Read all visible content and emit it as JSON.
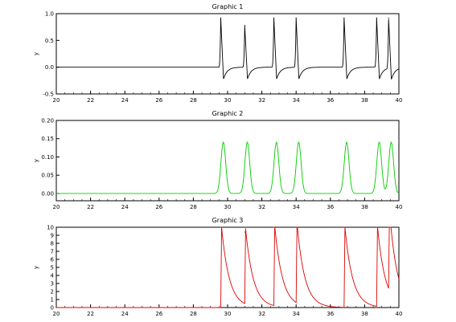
{
  "chart_data": [
    {
      "type": "line",
      "title": "Graphic 1",
      "xlabel": "",
      "ylabel": "y",
      "xlim": [
        20,
        40
      ],
      "ylim": [
        -0.5,
        1.0
      ],
      "xticks": [
        20,
        22,
        24,
        26,
        28,
        30,
        32,
        34,
        36,
        38,
        40
      ],
      "yticks": [
        -0.5,
        0.0,
        0.5,
        1.0
      ],
      "ytick_labels": [
        "-0.5",
        "0.0",
        "0.5",
        "1.0"
      ],
      "grid": false,
      "series": [
        {
          "color": "#000000",
          "spike_times": [
            29.6,
            31.0,
            32.7,
            34.0,
            36.8,
            38.7,
            39.4
          ],
          "spike_peaks": [
            0.92,
            0.78,
            0.92,
            0.92,
            0.92,
            0.92,
            0.92
          ],
          "undershoot": -0.22,
          "baseline": 0.0
        }
      ]
    },
    {
      "type": "line",
      "title": "Graphic 2",
      "xlabel": "",
      "ylabel": "y",
      "xlim": [
        20,
        40
      ],
      "ylim": [
        -0.02,
        0.2
      ],
      "xticks": [
        20,
        22,
        24,
        26,
        28,
        30,
        32,
        34,
        36,
        38,
        40
      ],
      "yticks": [
        0.0,
        0.05,
        0.1,
        0.15,
        0.2
      ],
      "ytick_labels": [
        "0.00",
        "0.05",
        "0.10",
        "0.15",
        "0.20"
      ],
      "grid": false,
      "series": [
        {
          "color": "#00cc00",
          "spike_times": [
            29.75,
            31.15,
            32.85,
            34.15,
            36.95,
            38.85,
            39.55
          ],
          "spike_peaks": [
            0.14,
            0.14,
            0.14,
            0.14,
            0.14,
            0.14,
            0.14
          ],
          "baseline": 0.0
        }
      ]
    },
    {
      "type": "line",
      "title": "Graphic 3",
      "xlabel": "",
      "ylabel": "y",
      "xlim": [
        20,
        40
      ],
      "ylim": [
        0,
        10
      ],
      "xticks": [
        20,
        22,
        24,
        26,
        28,
        30,
        32,
        34,
        36,
        38,
        40
      ],
      "yticks": [
        0,
        1,
        2,
        3,
        4,
        5,
        6,
        7,
        8,
        9,
        10
      ],
      "ytick_labels": [
        "0",
        "1",
        "2",
        "3",
        "4",
        "5",
        "6",
        "7",
        "8",
        "9",
        "10"
      ],
      "grid": false,
      "series": [
        {
          "color": "#dd0000",
          "spike_times": [
            29.6,
            31.0,
            32.7,
            34.0,
            36.8,
            38.7,
            39.4
          ],
          "spike_peaks": [
            10.0,
            9.4,
            10.0,
            10.0,
            10.0,
            10.0,
            10.0
          ],
          "decay_tau": 0.45,
          "baseline": 0.0
        }
      ]
    }
  ]
}
